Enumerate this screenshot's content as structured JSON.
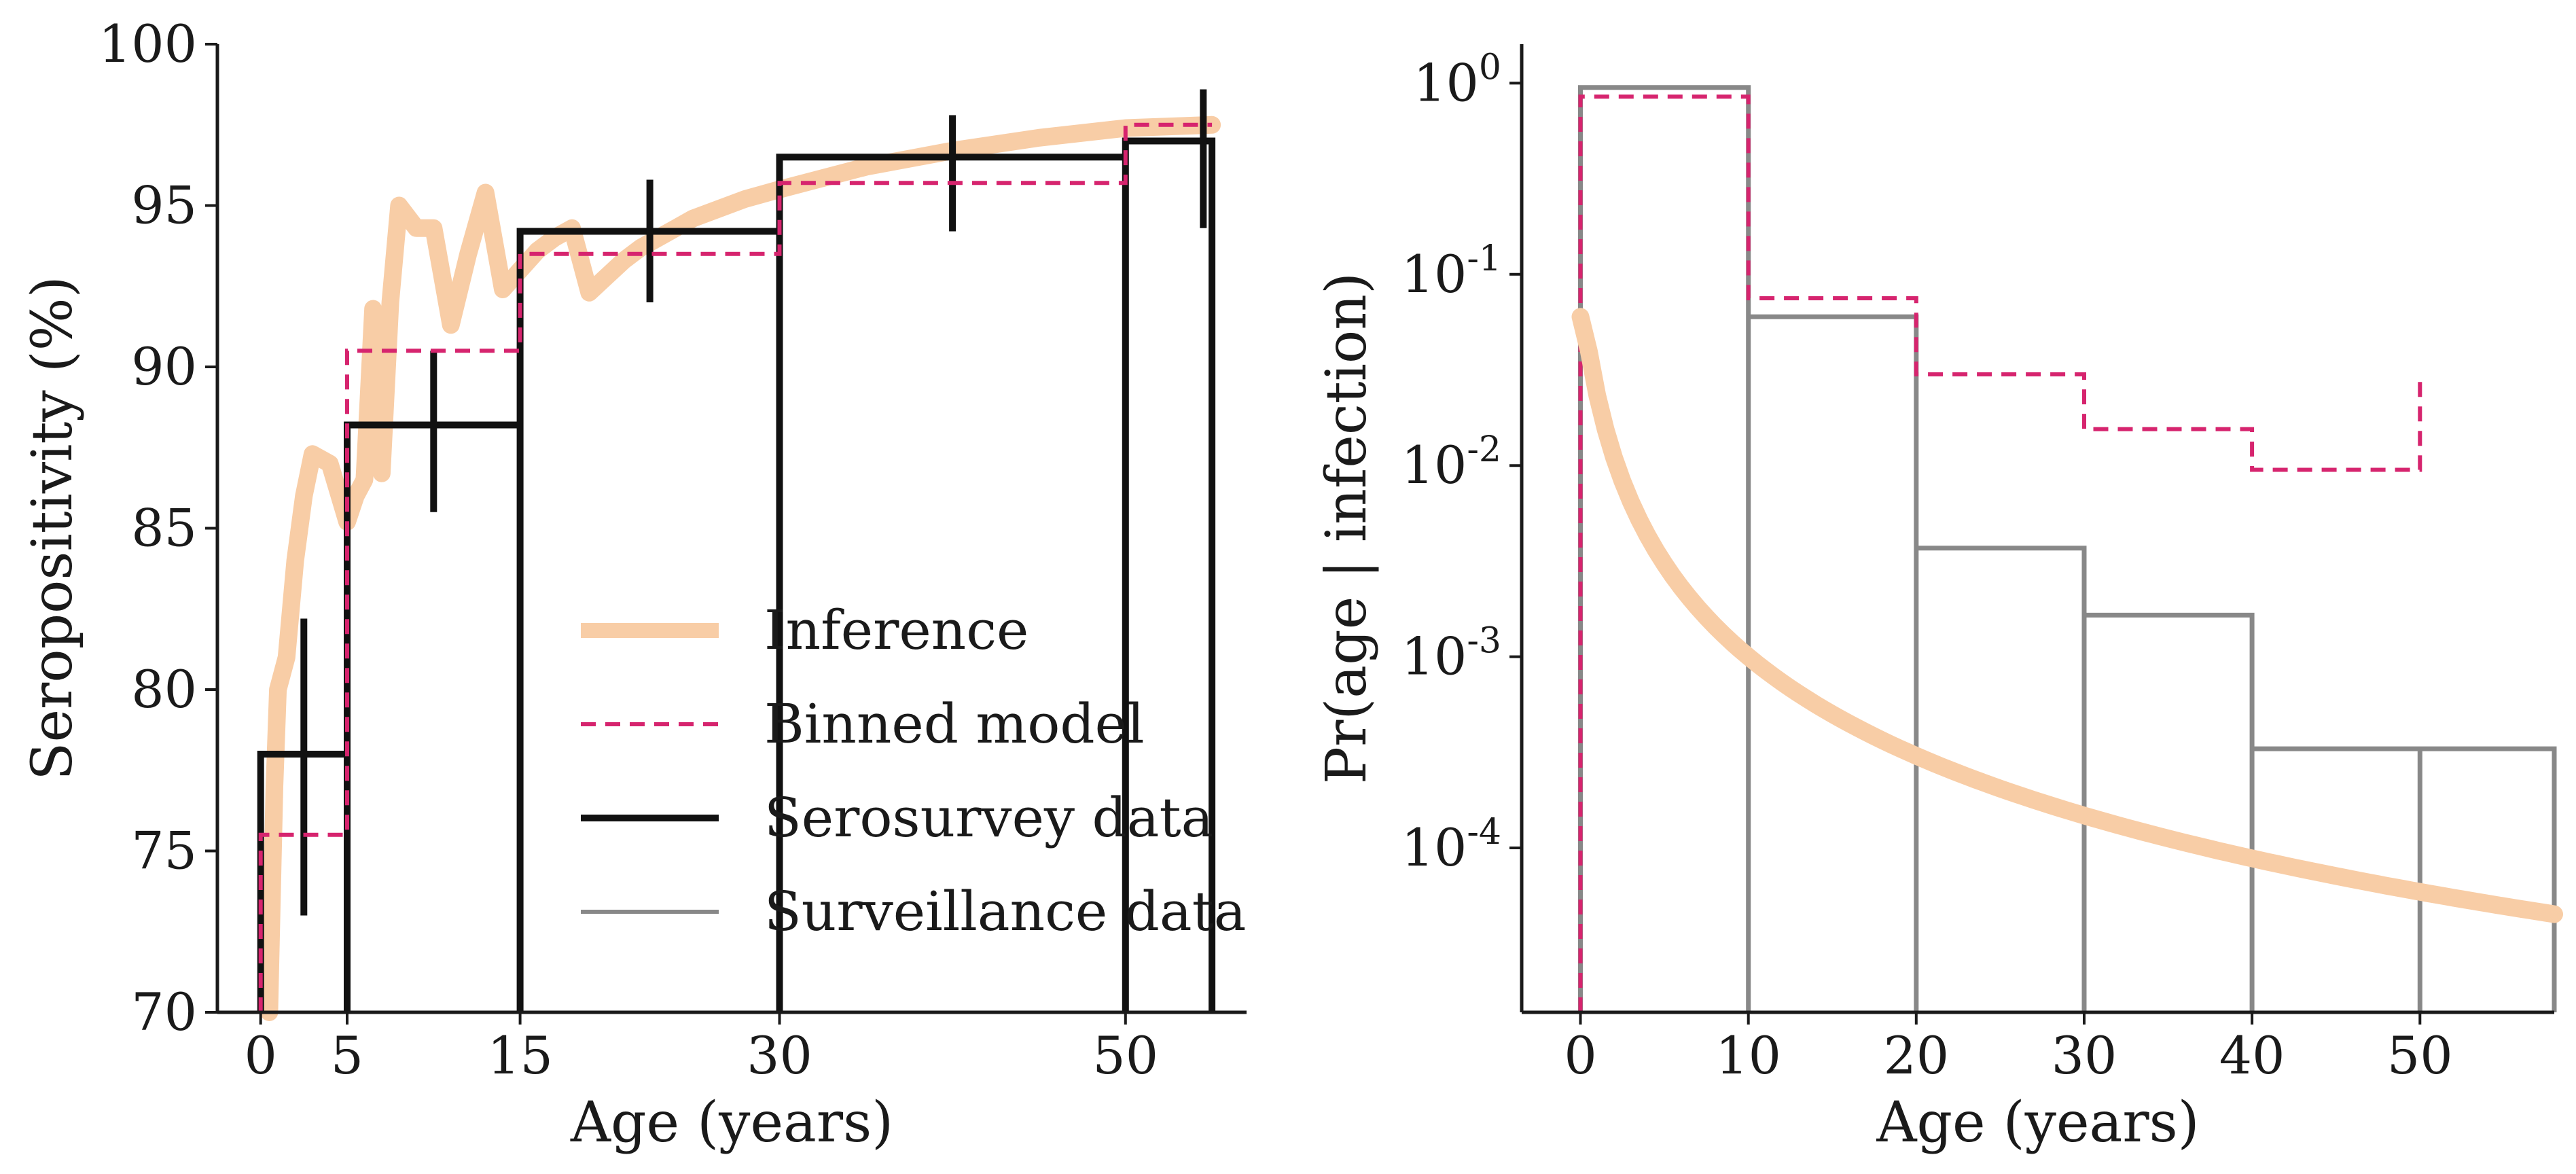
{
  "chart_data": [
    {
      "type": "line",
      "xlabel": "Age (years)",
      "ylabel": "Seropositivity (%)",
      "xlim": [
        -2.5,
        57
      ],
      "ylim": [
        70,
        100
      ],
      "xticks": [
        0,
        5,
        15,
        30,
        50
      ],
      "yticks": [
        70,
        75,
        80,
        85,
        90,
        95,
        100
      ],
      "colors": {
        "Inference": "#f8cda6",
        "Binned model": "#d6246e",
        "Serosurvey data": "#111111",
        "Surveillance data": "#888888"
      },
      "legend": {
        "position": "lower-right",
        "entries": [
          "Inference",
          "Binned model",
          "Serosurvey data",
          "Surveillance data"
        ]
      },
      "series": [
        {
          "name": "Inference",
          "style": "thick-solid",
          "x": [
            0.5,
            0.8,
            1,
            1.5,
            2,
            2.5,
            3,
            4,
            5,
            5.5,
            6,
            6.5,
            7,
            7.5,
            8,
            9,
            10,
            11,
            12,
            13,
            14,
            15,
            16,
            17,
            18,
            19,
            20,
            21,
            22,
            23,
            24,
            25,
            28,
            30,
            35,
            40,
            45,
            50,
            55
          ],
          "y": [
            70,
            77,
            80,
            81,
            84,
            86,
            87.3,
            87,
            85.2,
            86,
            86.5,
            91.8,
            86.7,
            92,
            95,
            94.3,
            94.3,
            91.3,
            93.5,
            95.4,
            92.4,
            93,
            93.6,
            94,
            94.3,
            92.3,
            92.8,
            93.3,
            93.7,
            94,
            94.3,
            94.6,
            95.2,
            95.5,
            96.2,
            96.7,
            97.1,
            97.4,
            97.5
          ]
        },
        {
          "name": "Binned model",
          "style": "dashed-step",
          "edges": [
            0,
            5,
            15,
            30,
            50,
            55
          ],
          "values": [
            75.5,
            90.5,
            93.5,
            95.7,
            97.5
          ]
        },
        {
          "name": "Serosurvey data",
          "style": "solid-step",
          "edges": [
            0,
            5,
            15,
            30,
            50,
            55
          ],
          "values": [
            78,
            88.2,
            94.2,
            96.5,
            97
          ],
          "error_bars": [
            {
              "x": 2.5,
              "y": 77.5,
              "low": 73,
              "high": 82.2
            },
            {
              "x": 10,
              "y": 88,
              "low": 85.5,
              "high": 90.5
            },
            {
              "x": 22.5,
              "y": 94,
              "low": 92,
              "high": 95.8
            },
            {
              "x": 40,
              "y": 96,
              "low": 94.2,
              "high": 97.8
            },
            {
              "x": 54.5,
              "y": 96.5,
              "low": 94.3,
              "high": 98.6
            }
          ]
        }
      ]
    },
    {
      "type": "line",
      "xlabel": "Age (years)",
      "ylabel": "Pr(age | infection)",
      "ylog": true,
      "xlim": [
        -3.5,
        58
      ],
      "ylim": [
        1.38e-05,
        1.6
      ],
      "xticks": [
        0,
        10,
        20,
        30,
        40,
        50
      ],
      "yticks": [
        {
          "value": 1,
          "base": "10",
          "exp": "0"
        },
        {
          "value": 0.1,
          "base": "10",
          "exp": "-1"
        },
        {
          "value": 0.01,
          "base": "10",
          "exp": "-2"
        },
        {
          "value": 0.001,
          "base": "10",
          "exp": "-3"
        },
        {
          "value": 0.0001,
          "base": "10",
          "exp": "-4"
        }
      ],
      "series": [
        {
          "name": "Surveillance data",
          "style": "bars",
          "edges": [
            0,
            10,
            20,
            30,
            40,
            50,
            58
          ],
          "values": [
            0.95,
            0.06,
            0.0037,
            0.00165,
            0.00033,
            0.00033
          ]
        },
        {
          "name": "Binned model",
          "style": "dashed-step",
          "edges": [
            0,
            10,
            20,
            30,
            40,
            50
          ],
          "values": [
            0.85,
            0.075,
            0.03,
            0.0155,
            0.0095
          ],
          "end_value": 0.03
        },
        {
          "name": "Inference",
          "style": "thick-solid",
          "curve": "power",
          "points": [
            [
              0,
              0.06
            ],
            [
              10,
              0.001
            ],
            [
              58,
              4.5e-05
            ]
          ]
        }
      ]
    }
  ]
}
